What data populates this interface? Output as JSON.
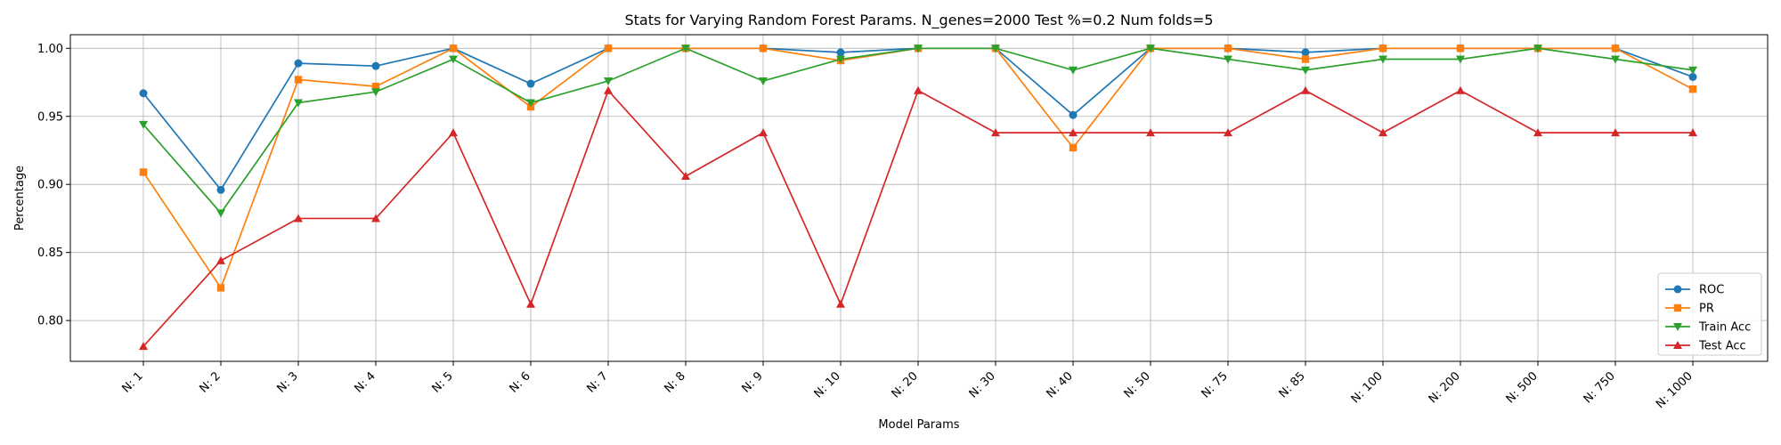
{
  "chart_data": {
    "type": "line",
    "title": "Stats for Varying Random Forest Params. N_genes=2000 Test %=0.2 Num folds=5",
    "xlabel": "Model Params",
    "ylabel": "Percentage",
    "categories": [
      "N: 1",
      "N: 2",
      "N: 3",
      "N: 4",
      "N: 5",
      "N: 6",
      "N: 7",
      "N: 8",
      "N: 9",
      "N: 10",
      "N: 20",
      "N: 30",
      "N: 40",
      "N: 50",
      "N: 75",
      "N: 85",
      "N: 100",
      "N: 200",
      "N: 500",
      "N: 750",
      "N: 1000"
    ],
    "ylim": [
      0.77,
      1.01
    ],
    "yticks": [
      "0.80",
      "0.85",
      "0.90",
      "0.95",
      "1.00"
    ],
    "grid": true,
    "legend_position": "lower-right",
    "series": [
      {
        "name": "ROC",
        "color": "#1f77b4",
        "marker": "circle",
        "values": [
          0.967,
          0.896,
          0.989,
          0.987,
          1.0,
          0.974,
          1.0,
          1.0,
          1.0,
          0.997,
          1.0,
          1.0,
          0.951,
          1.0,
          1.0,
          0.997,
          1.0,
          1.0,
          1.0,
          1.0,
          0.979
        ]
      },
      {
        "name": "PR",
        "color": "#ff7f0e",
        "marker": "square",
        "values": [
          0.909,
          0.824,
          0.977,
          0.972,
          1.0,
          0.957,
          1.0,
          1.0,
          1.0,
          0.991,
          1.0,
          1.0,
          0.927,
          1.0,
          1.0,
          0.992,
          1.0,
          1.0,
          1.0,
          1.0,
          0.97
        ]
      },
      {
        "name": "Train Acc",
        "color": "#2ca02c",
        "marker": "triangle-down",
        "values": [
          0.944,
          0.879,
          0.96,
          0.968,
          0.992,
          0.96,
          0.976,
          1.0,
          0.976,
          0.992,
          1.0,
          1.0,
          0.984,
          1.0,
          0.992,
          0.984,
          0.992,
          0.992,
          1.0,
          0.992,
          0.984
        ]
      },
      {
        "name": "Test Acc",
        "color": "#d62728",
        "marker": "triangle-up",
        "values": [
          0.781,
          0.844,
          0.875,
          0.875,
          0.938,
          0.812,
          0.969,
          0.906,
          0.938,
          0.812,
          0.969,
          0.938,
          0.938,
          0.938,
          0.938,
          0.969,
          0.938,
          0.969,
          0.938,
          0.938,
          0.938
        ]
      }
    ]
  }
}
